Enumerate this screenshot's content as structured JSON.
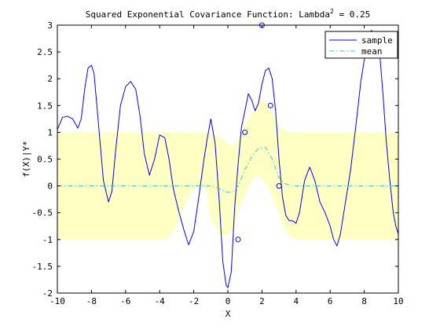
{
  "chart_data": {
    "type": "line",
    "title": "Squared Exponential Covariance Function: Lambda",
    "title_superscript": "2",
    "title_suffix": " = 0.25",
    "xlabel": "X",
    "ylabel": "f(X)|Y*",
    "xlim": [
      -10,
      10
    ],
    "ylim": [
      -2,
      3
    ],
    "xticks": [
      -10,
      -8,
      -6,
      -4,
      -2,
      0,
      2,
      4,
      6,
      8,
      10
    ],
    "xtick_labels": [
      "-10",
      "-8",
      "-6",
      "-4",
      "-2",
      "0",
      "2",
      "4",
      "6",
      "8",
      "10"
    ],
    "yticks": [
      -2,
      -1.5,
      -1,
      -0.5,
      0,
      0.5,
      1,
      1.5,
      2,
      2.5,
      3
    ],
    "ytick_labels": [
      "-2",
      "-1.5",
      "-1",
      "-0.5",
      "0",
      "0.5",
      "1",
      "1.5",
      "2",
      "2.5",
      "3"
    ],
    "grid": false,
    "legend_position": "top-right",
    "colors": {
      "sample": "#0000ff",
      "mean": "#33cccc",
      "band": "#ffffc4",
      "observations": "#0000ff"
    },
    "series": [
      {
        "name": "sample",
        "style": "solid",
        "x": [
          -10,
          -9.7,
          -9.4,
          -9.1,
          -8.8,
          -8.6,
          -8.4,
          -8.2,
          -8.0,
          -7.85,
          -7.6,
          -7.3,
          -7.0,
          -6.8,
          -6.6,
          -6.3,
          -6.0,
          -5.7,
          -5.4,
          -5.15,
          -4.9,
          -4.6,
          -4.3,
          -4.0,
          -3.7,
          -3.45,
          -3.2,
          -2.9,
          -2.6,
          -2.3,
          -2.0,
          -1.7,
          -1.4,
          -1.2,
          -1.0,
          -0.75,
          -0.5,
          -0.3,
          -0.1,
          0.0,
          0.2,
          0.4,
          0.6,
          0.8,
          1.0,
          1.2,
          1.4,
          1.6,
          1.8,
          2.0,
          2.2,
          2.4,
          2.6,
          2.8,
          3.0,
          3.2,
          3.4,
          3.6,
          3.8,
          4.0,
          4.2,
          4.5,
          4.8,
          5.1,
          5.4,
          5.7,
          6.0,
          6.2,
          6.4,
          6.6,
          6.8,
          7.0,
          7.2,
          7.5,
          7.8,
          8.1,
          8.4,
          8.7,
          8.9,
          9.1,
          9.3,
          9.5,
          9.7,
          9.85,
          10.0
        ],
        "y": [
          1.05,
          1.28,
          1.3,
          1.25,
          1.08,
          1.25,
          1.8,
          2.2,
          2.25,
          2.1,
          1.2,
          0.1,
          -0.3,
          -0.1,
          0.6,
          1.5,
          1.85,
          1.95,
          1.8,
          1.3,
          0.6,
          0.2,
          0.5,
          0.95,
          0.9,
          0.5,
          -0.05,
          -0.45,
          -0.8,
          -1.1,
          -0.85,
          -0.2,
          0.5,
          0.9,
          1.25,
          0.8,
          -0.3,
          -1.4,
          -1.85,
          -1.9,
          -1.6,
          -0.4,
          0.4,
          1.1,
          1.4,
          1.72,
          1.6,
          1.4,
          1.55,
          1.9,
          2.15,
          2.2,
          2.0,
          1.4,
          0.5,
          -0.2,
          -0.55,
          -0.65,
          -0.65,
          -0.7,
          -0.5,
          0.1,
          0.35,
          0.1,
          -0.3,
          -0.5,
          -0.75,
          -1.0,
          -1.12,
          -0.9,
          -0.5,
          -0.1,
          0.3,
          1.1,
          1.95,
          2.55,
          2.9,
          2.85,
          2.5,
          1.7,
          0.8,
          0.1,
          -0.5,
          -0.75,
          -0.9
        ]
      },
      {
        "name": "mean",
        "style": "dashdot",
        "x": [
          -10,
          -3,
          -2,
          -1,
          -0.5,
          0,
          0.3,
          0.6,
          1.0,
          1.4,
          1.8,
          2.2,
          2.6,
          3.0,
          3.3,
          3.6,
          4,
          5,
          6,
          7,
          8,
          9,
          10
        ],
        "y": [
          0,
          0,
          0,
          0,
          -0.05,
          -0.12,
          -0.1,
          0.0,
          0.3,
          0.55,
          0.7,
          0.72,
          0.5,
          0.15,
          0.05,
          0.01,
          0,
          0,
          0,
          0,
          0,
          0,
          0
        ]
      }
    ],
    "band": {
      "x": [
        -10,
        -4,
        -3.7,
        -3.4,
        -3.1,
        -2.8,
        -2.5,
        -2.2,
        -1.9,
        -1.6,
        -1.3,
        -1.0,
        -0.7,
        -0.4,
        -0.1,
        0.2,
        0.5,
        0.8,
        1.1,
        1.4,
        1.7,
        2.0,
        2.3,
        2.6,
        2.9,
        3.2,
        3.5,
        3.8,
        4.1,
        4.5,
        10
      ],
      "upper": [
        1,
        1,
        1,
        1,
        1,
        1,
        1,
        1,
        1,
        1,
        1,
        0.97,
        0.94,
        0.9,
        0.82,
        0.75,
        0.8,
        1.0,
        1.15,
        1.35,
        1.55,
        1.6,
        1.5,
        1.35,
        1.15,
        1.05,
        1.02,
        1.0,
        1.0,
        1.0,
        1
      ],
      "lower": [
        -1,
        -1,
        -1,
        -0.95,
        -0.78,
        -0.55,
        -0.35,
        -0.15,
        -0.02,
        0.0,
        -0.02,
        -0.6,
        -0.8,
        -0.9,
        -0.92,
        -0.9,
        -0.6,
        -0.35,
        -0.1,
        0.1,
        0.2,
        0.15,
        0.0,
        -0.2,
        -0.45,
        -0.7,
        -0.9,
        -0.97,
        -1.0,
        -1.0,
        -1
      ]
    },
    "observations": {
      "x": [
        0.6,
        1.0,
        2.0,
        2.5,
        3.0
      ],
      "y": [
        -1.0,
        1.0,
        3.0,
        1.5,
        0.0
      ]
    }
  }
}
